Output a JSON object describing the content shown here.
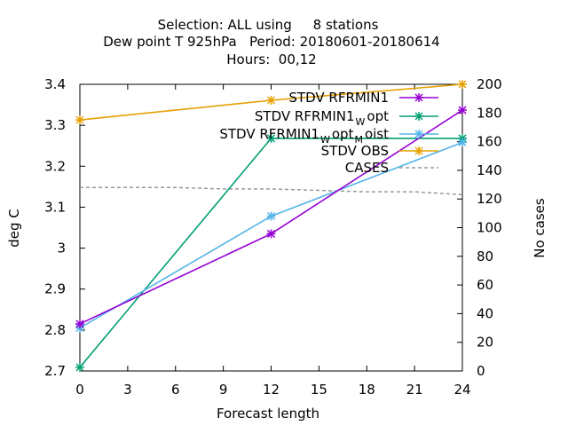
{
  "chart_data": {
    "type": "line",
    "title_lines": [
      "Selection: ALL using     8 stations",
      "Dew point T 925hPa   Period: 20180601-20180614",
      "Hours:  00,12"
    ],
    "xlabel": "Forecast length",
    "ylabel": "deg C",
    "y2label": "No cases",
    "x_ticks": [
      0,
      3,
      6,
      9,
      12,
      15,
      18,
      21,
      24
    ],
    "xlim": [
      0,
      24
    ],
    "y_ticks": [
      "2.7",
      "2.8",
      "2.9",
      "3",
      "3.1",
      "3.2",
      "3.3",
      "3.4"
    ],
    "ylim": [
      2.7,
      3.4
    ],
    "y2_ticks": [
      0,
      20,
      40,
      60,
      80,
      100,
      120,
      140,
      160,
      180,
      200
    ],
    "y2lim": [
      0,
      200
    ],
    "grid": false,
    "legend_position": "top-right",
    "series": [
      {
        "name": "STDV RFRMIN1",
        "name_parts": [
          {
            "t": "STDV RFRMIN1",
            "sub": false
          }
        ],
        "color": "#9400d3",
        "marker": "x",
        "axis": "y",
        "x": [
          0,
          12,
          24
        ],
        "values": [
          2.815,
          3.035,
          3.337
        ]
      },
      {
        "name": "STDV RFRMIN1_W opt",
        "name_parts": [
          {
            "t": "STDV RFRMIN1",
            "sub": false
          },
          {
            "t": "W",
            "sub": true
          },
          {
            "t": "opt",
            "sub": false
          }
        ],
        "color": "#009e73",
        "marker": "x",
        "axis": "y",
        "x": [
          0,
          12,
          24
        ],
        "values": [
          2.709,
          3.268,
          3.268
        ]
      },
      {
        "name": "STDV RFRMIN1_W opt_M oist",
        "name_parts": [
          {
            "t": "STDV RFRMIN1",
            "sub": false
          },
          {
            "t": "W",
            "sub": true
          },
          {
            "t": "opt",
            "sub": false
          },
          {
            "t": "M",
            "sub": true
          },
          {
            "t": "oist",
            "sub": false
          }
        ],
        "color": "#56b4e9",
        "marker": "x",
        "axis": "y",
        "x": [
          0,
          12,
          24
        ],
        "values": [
          2.805,
          3.078,
          3.258
        ]
      },
      {
        "name": "STDV OBS",
        "name_parts": [
          {
            "t": "STDV OBS",
            "sub": false
          }
        ],
        "color": "#e69f00",
        "marker": "x",
        "axis": "y",
        "x": [
          0,
          12,
          24
        ],
        "values": [
          3.313,
          3.361,
          3.4
        ]
      },
      {
        "name": "CASES",
        "name_parts": [
          {
            "t": "CASES",
            "sub": false
          }
        ],
        "color": "#999999",
        "dashed": true,
        "marker": "none",
        "axis": "y2",
        "x": [
          0,
          3,
          6,
          9,
          12,
          15,
          18,
          21,
          24
        ],
        "values": [
          128,
          128,
          128,
          127,
          127,
          126,
          125,
          125,
          123
        ]
      }
    ]
  }
}
